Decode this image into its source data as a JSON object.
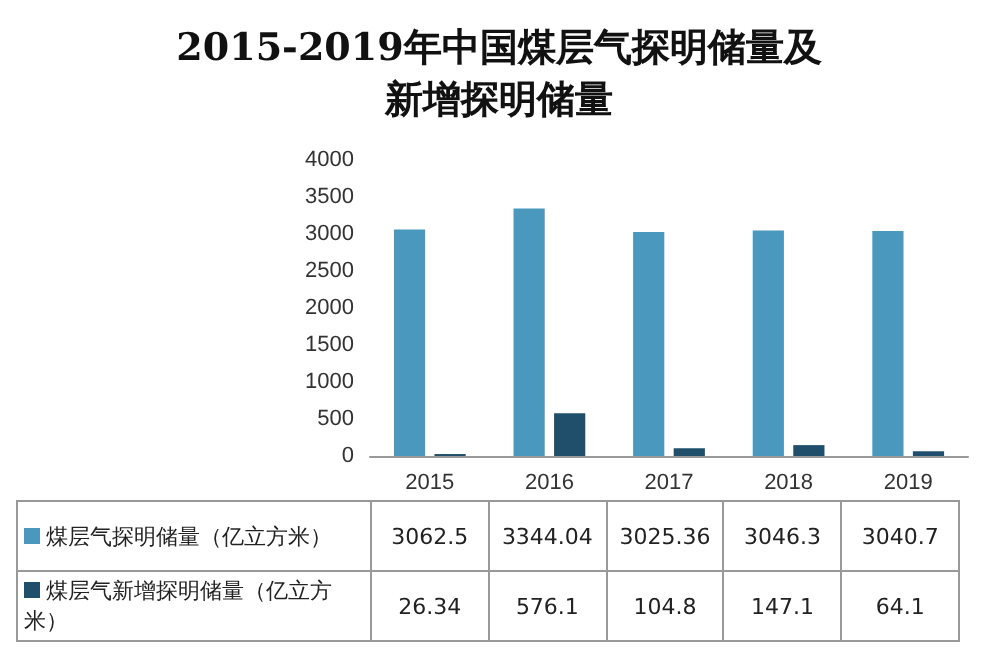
{
  "chart_data": {
    "type": "bar",
    "title": "2015-2019年中国煤层气探明储量及新增探明储量",
    "categories": [
      "2015",
      "2016",
      "2017",
      "2018",
      "2019"
    ],
    "series": [
      {
        "name": "煤层气探明储量（亿立方米）",
        "color": "#4a98bd",
        "values": [
          3062.5,
          3344.04,
          3025.36,
          3046.3,
          3040.7
        ]
      },
      {
        "name": "煤层气新增探明储量（亿立方米）",
        "color": "#1f4f6b",
        "values": [
          26.34,
          576.1,
          104.8,
          147.1,
          64.1
        ]
      }
    ],
    "ylim": [
      0,
      4000
    ],
    "yticks": [
      0,
      500,
      1000,
      1500,
      2000,
      2500,
      3000,
      3500,
      4000
    ],
    "data_labels": true,
    "legend": "bottom left",
    "grid": false
  }
}
